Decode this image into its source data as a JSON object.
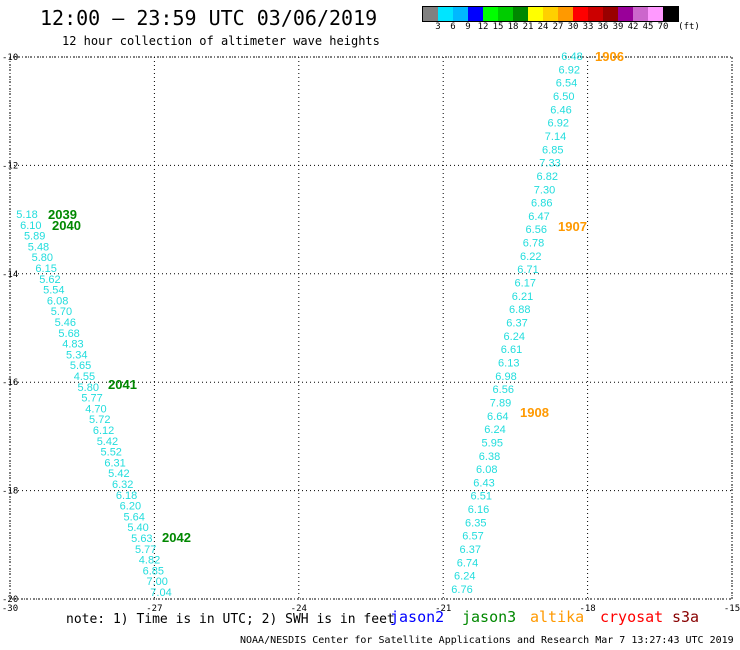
{
  "header": {
    "title": "12:00 — 23:59 UTC 03/06/2019",
    "subtitle": "12 hour collection of altimeter wave heights"
  },
  "legend": {
    "unit": "(ft)",
    "labels": [
      "3",
      "6",
      "9",
      "12",
      "15",
      "18",
      "21",
      "24",
      "27",
      "30",
      "33",
      "36",
      "39",
      "42",
      "45",
      "70"
    ],
    "colors": [
      "#808080",
      "#00e5ff",
      "#00b8ff",
      "#0000ff",
      "#00ff00",
      "#00cc00",
      "#008800",
      "#ffff00",
      "#ffd000",
      "#ff9900",
      "#ff0000",
      "#cc0000",
      "#990000",
      "#990099",
      "#cc66cc",
      "#ff99ff",
      "#000000"
    ]
  },
  "map": {
    "lon_ticks": [
      "-30",
      "-27",
      "-24",
      "-21",
      "-18",
      "-15"
    ],
    "lat_ticks": [
      "-10",
      "-12",
      "-14",
      "-16",
      "-18",
      "-20"
    ],
    "wave_color": "#22dddd",
    "time_colors": {
      "jason3": "#008800",
      "altika": "#ff9900"
    },
    "track_left": {
      "values": [
        "5.18",
        "6.10",
        "5.89",
        "5.48",
        "5.80",
        "6.15",
        "5.62",
        "5.54",
        "6.08",
        "5.70",
        "5.46",
        "5.68",
        "4.83",
        "5.34",
        "5.65",
        "4.55",
        "5.80",
        "5.77",
        "4.70",
        "5.72",
        "6.12",
        "5.42",
        "5.52",
        "6.31",
        "5.42",
        "6.32",
        "6.18",
        "6.20",
        "5.64",
        "5.40",
        "5.63",
        "5.77",
        "4.82",
        "6.85",
        "7.00",
        "7.04"
      ],
      "times": [
        "2039",
        "2040",
        "2041",
        "2042"
      ],
      "satellite": "jason3"
    },
    "track_right": {
      "values": [
        "6.48",
        "6.92",
        "6.54",
        "6.50",
        "6.46",
        "6.92",
        "7.14",
        "6.85",
        "7.33",
        "6.82",
        "7.30",
        "6.86",
        "6.47",
        "6.56",
        "6.78",
        "6.22",
        "6.71",
        "6.17",
        "6.21",
        "6.88",
        "6.37",
        "6.24",
        "6.61",
        "6.13",
        "6.98",
        "6.56",
        "7.89",
        "6.64",
        "6.24",
        "5.95",
        "6.38",
        "6.08",
        "6.43",
        "6.51",
        "6.16",
        "6.35",
        "6.57",
        "6.37",
        "6.74",
        "6.24",
        "6.76"
      ],
      "times": [
        "1906",
        "1907",
        "1908"
      ],
      "satellite": "altika"
    }
  },
  "note": "note: 1) Time is in UTC; 2) SWH is in feet",
  "satellites": [
    {
      "name": "jason2",
      "color": "#0000ff"
    },
    {
      "name": "jason3",
      "color": "#008800"
    },
    {
      "name": "altika",
      "color": "#ff9900"
    },
    {
      "name": "cryosat",
      "color": "#ff0000"
    },
    {
      "name": "s3a",
      "color": "#880000"
    }
  ],
  "footer": "NOAA/NESDIS Center for Satellite Applications and Research   Mar  7 13:27:43 UTC 2019"
}
